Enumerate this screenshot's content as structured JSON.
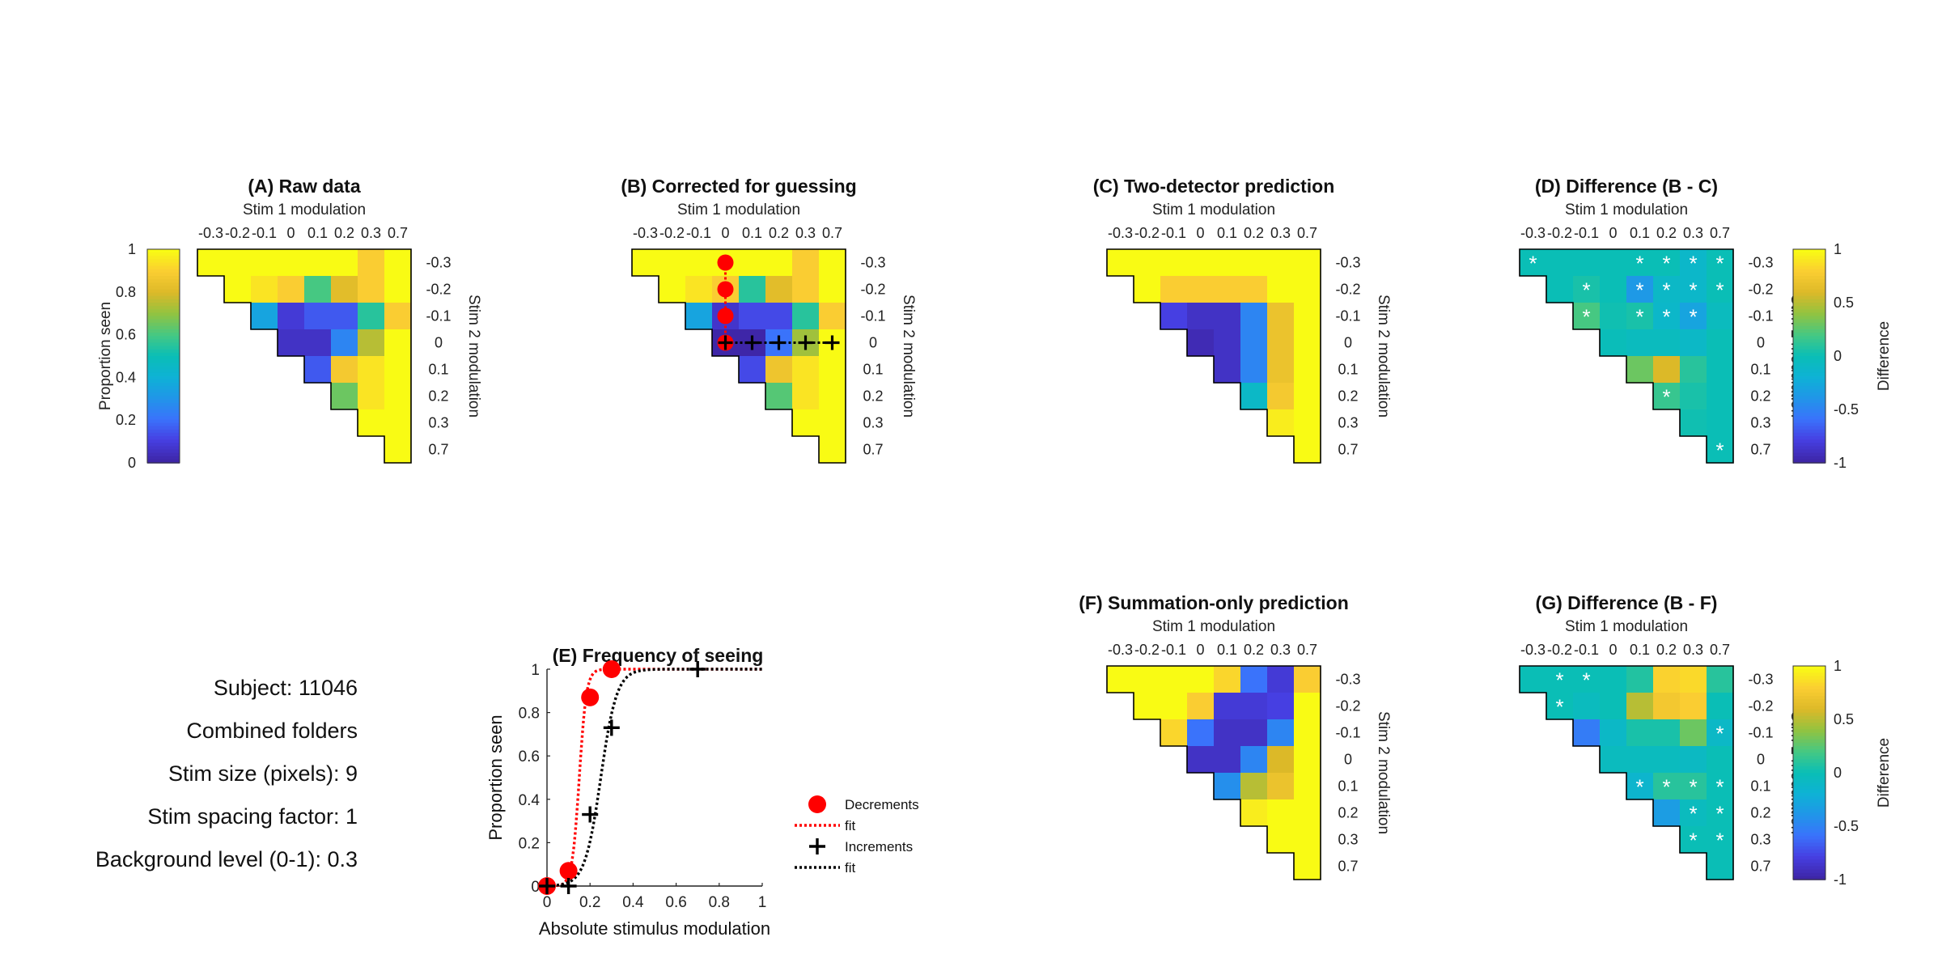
{
  "info": {
    "subject": "Subject: 11046",
    "folders": "Combined folders",
    "stim_size": "Stim size (pixels): 9",
    "stim_spacing": "Stim spacing factor: 1",
    "background": "Background level (0-1): 0.3"
  },
  "colors": {
    "decrement_marker": "#ff0000",
    "decrement_fit": "#ff0000",
    "increment_marker": "#000000",
    "increment_fit": "#000000",
    "asterisk": "#ffffff",
    "colormap": "parula"
  },
  "chart_data": [
    {
      "id": "A",
      "type": "heatmap",
      "title": "(A) Raw data",
      "xlabel": "Stim 1 modulation",
      "ylabel": "Stim 2 modulation",
      "x_ticks": [
        "-0.3",
        "-0.2",
        "-0.1",
        "0",
        "0.1",
        "0.2",
        "0.3",
        "0.7"
      ],
      "y_ticks": [
        "-0.3",
        "-0.2",
        "-0.1",
        "0",
        "0.1",
        "0.2",
        "0.3",
        "0.7"
      ],
      "clim": [
        0,
        1
      ],
      "colorbar": {
        "label": "Proportion seen",
        "ticks": [
          "0",
          "0.2",
          "0.4",
          "0.6",
          "0.8",
          "1"
        ],
        "position": "left"
      },
      "values": [
        [
          1.0,
          1.0,
          1.0,
          1.0,
          1.0,
          1.0,
          0.9,
          1.0
        ],
        [
          null,
          1.0,
          0.95,
          0.9,
          0.6,
          0.82,
          0.9,
          1.0
        ],
        [
          null,
          null,
          0.35,
          0.08,
          0.15,
          0.15,
          0.55,
          0.9
        ],
        [
          null,
          null,
          null,
          0.05,
          0.05,
          0.25,
          0.75,
          1.0
        ],
        [
          null,
          null,
          null,
          null,
          0.15,
          0.88,
          0.95,
          1.0
        ],
        [
          null,
          null,
          null,
          null,
          null,
          0.65,
          0.95,
          1.0
        ],
        [
          null,
          null,
          null,
          null,
          null,
          null,
          1.0,
          1.0
        ],
        [
          null,
          null,
          null,
          null,
          null,
          null,
          null,
          1.0
        ]
      ]
    },
    {
      "id": "B",
      "type": "heatmap",
      "title": "(B) Corrected for guessing",
      "xlabel": "Stim 1 modulation",
      "ylabel": "Stim 2 modulation",
      "x_ticks": [
        "-0.3",
        "-0.2",
        "-0.1",
        "0",
        "0.1",
        "0.2",
        "0.3",
        "0.7"
      ],
      "y_ticks": [
        "-0.3",
        "-0.2",
        "-0.1",
        "0",
        "0.1",
        "0.2",
        "0.3",
        "0.7"
      ],
      "clim": [
        0,
        1
      ],
      "decrement_column_index": 3,
      "increment_row_index": 3,
      "values": [
        [
          1.0,
          1.0,
          1.0,
          1.0,
          1.0,
          1.0,
          0.9,
          1.0
        ],
        [
          null,
          1.0,
          0.95,
          0.9,
          0.55,
          0.82,
          0.9,
          1.0
        ],
        [
          null,
          null,
          0.35,
          0.06,
          0.12,
          0.12,
          0.55,
          0.9
        ],
        [
          null,
          null,
          null,
          0.0,
          0.0,
          0.2,
          0.72,
          1.0
        ],
        [
          null,
          null,
          null,
          null,
          0.12,
          0.86,
          0.95,
          1.0
        ],
        [
          null,
          null,
          null,
          null,
          null,
          0.62,
          0.95,
          1.0
        ],
        [
          null,
          null,
          null,
          null,
          null,
          null,
          1.0,
          1.0
        ],
        [
          null,
          null,
          null,
          null,
          null,
          null,
          null,
          1.0
        ]
      ]
    },
    {
      "id": "C",
      "type": "heatmap",
      "title": "(C) Two-detector prediction",
      "xlabel": "Stim 1 modulation",
      "ylabel": "Stim 2 modulation",
      "x_ticks": [
        "-0.3",
        "-0.2",
        "-0.1",
        "0",
        "0.1",
        "0.2",
        "0.3",
        "0.7"
      ],
      "y_ticks": [
        "-0.3",
        "-0.2",
        "-0.1",
        "0",
        "0.1",
        "0.2",
        "0.3",
        "0.7"
      ],
      "clim": [
        0,
        1
      ],
      "values": [
        [
          1.0,
          1.0,
          1.0,
          1.0,
          1.0,
          1.0,
          1.0,
          1.0
        ],
        [
          null,
          1.0,
          0.9,
          0.9,
          0.9,
          0.9,
          1.0,
          1.0
        ],
        [
          null,
          null,
          0.1,
          0.05,
          0.05,
          0.25,
          0.85,
          1.0
        ],
        [
          null,
          null,
          null,
          0.02,
          0.05,
          0.25,
          0.85,
          1.0
        ],
        [
          null,
          null,
          null,
          null,
          0.05,
          0.25,
          0.85,
          1.0
        ],
        [
          null,
          null,
          null,
          null,
          null,
          0.45,
          0.88,
          1.0
        ],
        [
          null,
          null,
          null,
          null,
          null,
          null,
          0.97,
          1.0
        ],
        [
          null,
          null,
          null,
          null,
          null,
          null,
          null,
          1.0
        ]
      ]
    },
    {
      "id": "D",
      "type": "heatmap",
      "title": "(D) Difference (B - C)",
      "xlabel": "Stim 1 modulation",
      "ylabel": "Stim 2 modulation",
      "x_ticks": [
        "-0.3",
        "-0.2",
        "-0.1",
        "0",
        "0.1",
        "0.2",
        "0.3",
        "0.7"
      ],
      "y_ticks": [
        "-0.3",
        "-0.2",
        "-0.1",
        "0",
        "0.1",
        "0.2",
        "0.3",
        "0.7"
      ],
      "clim": [
        -1,
        1
      ],
      "colorbar": {
        "label": "Difference",
        "ticks": [
          "-1",
          "-0.5",
          "0",
          "0.5",
          "1"
        ],
        "position": "right"
      },
      "values": [
        [
          0.0,
          0.0,
          0.0,
          0.0,
          0.0,
          0.0,
          -0.12,
          0.0
        ],
        [
          null,
          0.0,
          0.05,
          0.0,
          -0.38,
          -0.1,
          -0.12,
          0.0
        ],
        [
          null,
          null,
          0.2,
          0.02,
          0.05,
          -0.12,
          -0.3,
          -0.05
        ],
        [
          null,
          null,
          null,
          -0.02,
          -0.05,
          -0.05,
          -0.1,
          0.0
        ],
        [
          null,
          null,
          null,
          null,
          0.3,
          0.6,
          0.1,
          0.0
        ],
        [
          null,
          null,
          null,
          null,
          null,
          0.15,
          0.05,
          0.0
        ],
        [
          null,
          null,
          null,
          null,
          null,
          null,
          0.02,
          0.0
        ],
        [
          null,
          null,
          null,
          null,
          null,
          null,
          null,
          0.0
        ]
      ],
      "asterisks": [
        [
          0,
          0
        ],
        [
          0,
          4
        ],
        [
          0,
          5
        ],
        [
          0,
          6
        ],
        [
          0,
          7
        ],
        [
          1,
          2
        ],
        [
          1,
          4
        ],
        [
          1,
          5
        ],
        [
          1,
          6
        ],
        [
          1,
          7
        ],
        [
          2,
          2
        ],
        [
          2,
          4
        ],
        [
          2,
          5
        ],
        [
          2,
          6
        ],
        [
          5,
          5
        ],
        [
          7,
          7
        ]
      ]
    },
    {
      "id": "E",
      "type": "scatter",
      "title": "(E) Frequency of seeing",
      "xlabel": "Absolute stimulus modulation",
      "ylabel": "Proportion seen",
      "xlim": [
        0,
        1
      ],
      "ylim": [
        0,
        1
      ],
      "x_ticks": [
        "0",
        "0.2",
        "0.4",
        "0.6",
        "0.8",
        "1"
      ],
      "y_ticks": [
        "0",
        "0.2",
        "0.4",
        "0.6",
        "0.8",
        "1"
      ],
      "legend_position": "right",
      "series": [
        {
          "name": "Decrements",
          "marker": "circle",
          "x": [
            0,
            0.1,
            0.2,
            0.3
          ],
          "y": [
            0,
            0.07,
            0.87,
            1.0
          ]
        },
        {
          "name": "fit",
          "line": "dotted",
          "fit_for": "Decrements",
          "midpoint": 0.15,
          "slope": 60
        },
        {
          "name": "Increments",
          "marker": "plus",
          "x": [
            0,
            0.1,
            0.2,
            0.3,
            0.7
          ],
          "y": [
            0,
            0,
            0.33,
            0.73,
            1.0
          ]
        },
        {
          "name": "fit",
          "line": "dotted",
          "fit_for": "Increments",
          "midpoint": 0.25,
          "slope": 27
        }
      ]
    },
    {
      "id": "F",
      "type": "heatmap",
      "title": "(F) Summation-only prediction",
      "xlabel": "Stim 1 modulation",
      "ylabel": "Stim 2 modulation",
      "x_ticks": [
        "-0.3",
        "-0.2",
        "-0.1",
        "0",
        "0.1",
        "0.2",
        "0.3",
        "0.7"
      ],
      "y_ticks": [
        "-0.3",
        "-0.2",
        "-0.1",
        "0",
        "0.1",
        "0.2",
        "0.3",
        "0.7"
      ],
      "clim": [
        0,
        1
      ],
      "values": [
        [
          1.0,
          1.0,
          1.0,
          1.0,
          0.92,
          0.2,
          0.08,
          0.9
        ],
        [
          null,
          1.0,
          1.0,
          0.9,
          0.08,
          0.08,
          0.1,
          1.0
        ],
        [
          null,
          null,
          0.92,
          0.2,
          0.05,
          0.05,
          0.25,
          1.0
        ],
        [
          null,
          null,
          null,
          0.05,
          0.05,
          0.25,
          0.8,
          1.0
        ],
        [
          null,
          null,
          null,
          null,
          0.28,
          0.75,
          0.85,
          1.0
        ],
        [
          null,
          null,
          null,
          null,
          null,
          0.97,
          1.0,
          1.0
        ],
        [
          null,
          null,
          null,
          null,
          null,
          null,
          1.0,
          1.0
        ],
        [
          null,
          null,
          null,
          null,
          null,
          null,
          null,
          1.0
        ]
      ]
    },
    {
      "id": "G",
      "type": "heatmap",
      "title": "(G) Difference (B - F)",
      "xlabel": "Stim 1 modulation",
      "ylabel": "Stim 2 modulation",
      "x_ticks": [
        "-0.3",
        "-0.2",
        "-0.1",
        "0",
        "0.1",
        "0.2",
        "0.3",
        "0.7"
      ],
      "y_ticks": [
        "-0.3",
        "-0.2",
        "-0.1",
        "0",
        "0.1",
        "0.2",
        "0.3",
        "0.7"
      ],
      "clim": [
        -1,
        1
      ],
      "colorbar": {
        "label": "Difference",
        "ticks": [
          "-1",
          "-0.5",
          "0",
          "0.5",
          "1"
        ],
        "position": "right"
      },
      "values": [
        [
          0.0,
          0.0,
          0.0,
          0.0,
          0.08,
          0.82,
          0.85,
          0.1
        ],
        [
          null,
          0.0,
          -0.05,
          0.0,
          0.5,
          0.75,
          0.8,
          0.0
        ],
        [
          null,
          null,
          -0.55,
          -0.1,
          0.05,
          0.05,
          0.3,
          -0.1
        ],
        [
          null,
          null,
          null,
          -0.05,
          -0.05,
          -0.05,
          -0.08,
          0.0
        ],
        [
          null,
          null,
          null,
          null,
          -0.15,
          0.1,
          0.1,
          0.0
        ],
        [
          null,
          null,
          null,
          null,
          null,
          -0.35,
          -0.05,
          0.0
        ],
        [
          null,
          null,
          null,
          null,
          null,
          null,
          0.0,
          0.0
        ],
        [
          null,
          null,
          null,
          null,
          null,
          null,
          null,
          0.0
        ]
      ],
      "asterisks": [
        [
          0,
          1
        ],
        [
          0,
          2
        ],
        [
          1,
          1
        ],
        [
          2,
          7
        ],
        [
          4,
          4
        ],
        [
          4,
          5
        ],
        [
          4,
          6
        ],
        [
          4,
          7
        ],
        [
          5,
          6
        ],
        [
          5,
          7
        ],
        [
          6,
          6
        ],
        [
          6,
          7
        ]
      ]
    }
  ]
}
